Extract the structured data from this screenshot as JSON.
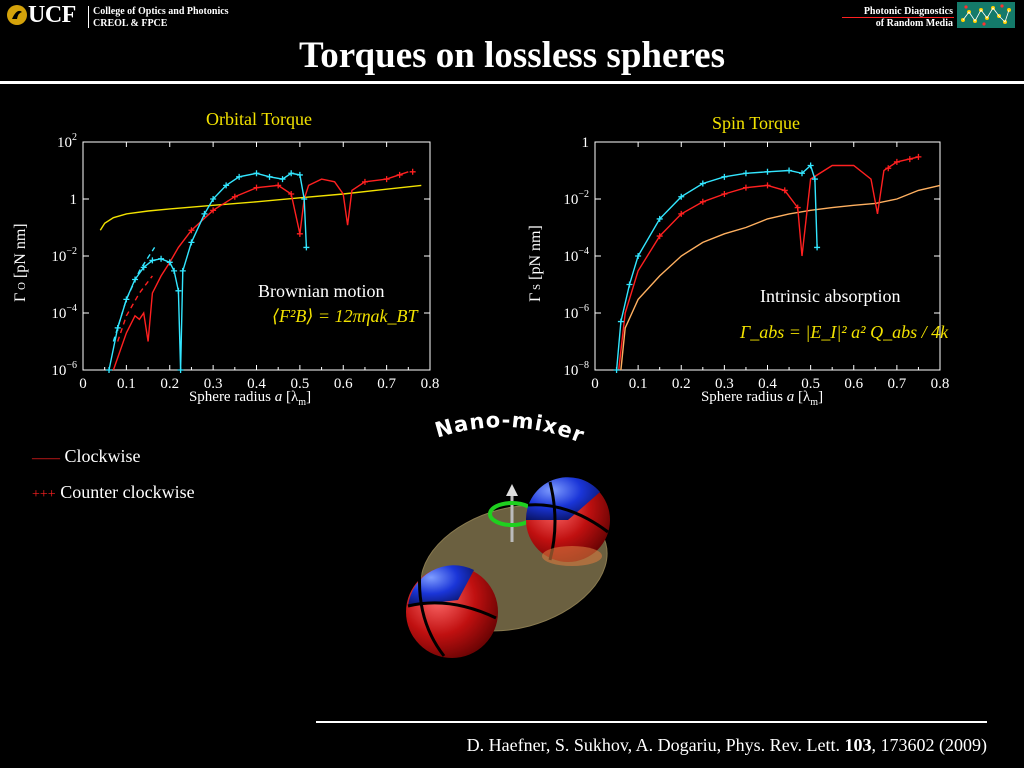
{
  "header": {
    "logo_text": "UCF",
    "college_line1": "College of Optics and Photonics",
    "college_line2": "CREOL & FPCE",
    "group_line1": "Photonic  Diagnostics",
    "group_line2": "of Random Media"
  },
  "slide": {
    "title": "Torques on lossless spheres"
  },
  "orbital_plot": {
    "title": "Orbital Torque",
    "ylabel_main": "Γ",
    "ylabel_sub": "O",
    "ylabel_units": "[pN nm]",
    "xlabel_pre": "Sphere radius ",
    "xlabel_var": "a",
    "xlabel_bracket_open": " [λ",
    "xlabel_sub": "m",
    "xlabel_bracket_close": "]",
    "annotation": "Brownian motion",
    "formula": "⟨F²B⟩ = 12πηak_BT"
  },
  "spin_plot": {
    "title": "Spin Torque",
    "ylabel_main": "Γ",
    "ylabel_sub": "S",
    "ylabel_units": "[pN nm]",
    "xlabel_pre": "Sphere radius ",
    "xlabel_var": "a",
    "xlabel_bracket_open": " [λ",
    "xlabel_sub": "m",
    "xlabel_bracket_close": "]",
    "annotation": "Intrinsic absorption",
    "formula": "Γ_abs = |E_I|² a² Q_abs / 4k"
  },
  "legend": {
    "items": [
      {
        "symbol": "——",
        "label": "Clockwise",
        "color": "#ff2020"
      },
      {
        "symbol": "+++",
        "label": "Counter clockwise",
        "color": "#ff2020"
      }
    ]
  },
  "mixer": {
    "label": "Nano-mixer"
  },
  "reference": {
    "prefix": "D. Haefner, S. Sukhov, A. Dogariu, Phys. Rev. Lett. ",
    "volume": "103",
    "suffix": ", 173602 (2009)"
  },
  "colors": {
    "accent_yellow": "#f2e200",
    "cyan": "#33e6ff",
    "red": "#ff2020",
    "orange": "#ffb060",
    "ucf_gold": "#d4a20a"
  },
  "chart_data": [
    {
      "type": "line",
      "title": "Orbital Torque",
      "xlabel": "Sphere radius a [λm]",
      "ylabel": "Γ O [pN nm]",
      "xlim": [
        0,
        0.8
      ],
      "ylim": [
        1e-06,
        100
      ],
      "yscale": "log",
      "x_ticks": [
        "0",
        "0.1",
        "0.2",
        "0.3",
        "0.4",
        "0.5",
        "0.6",
        "0.7",
        "0.8"
      ],
      "y_ticks": [
        "10^-6",
        "10^-4",
        "10^-2",
        "1",
        "10^2"
      ],
      "series": [
        {
          "name": "Brownian motion",
          "color": "#f2e200",
          "style": "line",
          "x": [
            0.04,
            0.05,
            0.07,
            0.1,
            0.15,
            0.2,
            0.3,
            0.4,
            0.5,
            0.6,
            0.7,
            0.78
          ],
          "y": [
            0.08,
            0.14,
            0.22,
            0.3,
            0.38,
            0.45,
            0.6,
            0.8,
            1.1,
            1.5,
            2.2,
            3.0
          ]
        },
        {
          "name": "Clockwise",
          "color": "#ff2020",
          "style": "line",
          "x": [
            0.07,
            0.1,
            0.12,
            0.13,
            0.14,
            0.15,
            0.16,
            0.18,
            0.2,
            0.22,
            0.25,
            0.3,
            0.35,
            0.4,
            0.45,
            0.48,
            0.5,
            0.51,
            0.52,
            0.55,
            0.58,
            0.6,
            0.61,
            0.62,
            0.65,
            0.7,
            0.75
          ],
          "y": [
            1e-06,
            2e-05,
            8e-05,
            6e-05,
            0.0001,
            1e-05,
            0.0005,
            0.002,
            0.006,
            0.02,
            0.08,
            0.4,
            1.2,
            2.5,
            3.0,
            1.5,
            0.06,
            1.0,
            3.0,
            5.0,
            4.0,
            1.5,
            0.12,
            2.0,
            4.0,
            5.0,
            9.0
          ]
        },
        {
          "name": "Counter clockwise",
          "color": "#ff2020",
          "style": "plus",
          "x": [
            0.25,
            0.3,
            0.35,
            0.4,
            0.45,
            0.48,
            0.5,
            0.65,
            0.7,
            0.73,
            0.76
          ],
          "y": [
            0.08,
            0.4,
            1.2,
            2.5,
            3.0,
            1.5,
            0.06,
            4.0,
            5.0,
            7.0,
            9.0
          ]
        },
        {
          "name": "cyan",
          "color": "#33e6ff",
          "style": "line-plus",
          "x": [
            0.06,
            0.08,
            0.1,
            0.12,
            0.14,
            0.16,
            0.18,
            0.2,
            0.21,
            0.22,
            0.225,
            0.23,
            0.25,
            0.28,
            0.3,
            0.33,
            0.36,
            0.4,
            0.43,
            0.46,
            0.48,
            0.5,
            0.51,
            0.515
          ],
          "y": [
            1e-06,
            3e-05,
            0.0003,
            0.0015,
            0.004,
            0.007,
            0.008,
            0.006,
            0.003,
            0.0006,
            1e-06,
            0.003,
            0.03,
            0.3,
            1.0,
            3.0,
            6.0,
            8.0,
            6.0,
            5.0,
            8.0,
            7.0,
            1.0,
            0.02
          ]
        },
        {
          "name": "fit-cyan",
          "color": "#33e6ff",
          "style": "dash",
          "x": [
            0.07,
            0.1,
            0.13,
            0.165
          ],
          "y": [
            1e-05,
            0.0003,
            0.003,
            0.02
          ]
        },
        {
          "name": "fit-red",
          "color": "#ff2020",
          "style": "dash",
          "x": [
            0.08,
            0.1,
            0.13,
            0.16
          ],
          "y": [
            1e-05,
            8e-05,
            0.0005,
            0.002
          ]
        }
      ]
    },
    {
      "type": "line",
      "title": "Spin Torque",
      "xlabel": "Sphere radius a [λm]",
      "ylabel": "Γ S [pN nm]",
      "xlim": [
        0,
        0.8
      ],
      "ylim": [
        1e-08,
        1
      ],
      "yscale": "log",
      "x_ticks": [
        "0",
        "0.1",
        "0.2",
        "0.3",
        "0.4",
        "0.5",
        "0.6",
        "0.7",
        "0.8"
      ],
      "y_ticks": [
        "10^-8",
        "10^-6",
        "10^-4",
        "10^-2",
        "1"
      ],
      "series": [
        {
          "name": "Intrinsic absorption",
          "color": "#ffb060",
          "style": "line",
          "x": [
            0.06,
            0.07,
            0.1,
            0.15,
            0.2,
            0.25,
            0.3,
            0.35,
            0.4,
            0.45,
            0.5,
            0.55,
            0.6,
            0.65,
            0.7,
            0.75,
            0.8
          ],
          "y": [
            1e-08,
            3e-07,
            3e-06,
            2e-05,
            0.0001,
            0.0003,
            0.0006,
            0.001,
            0.002,
            0.003,
            0.004,
            0.005,
            0.006,
            0.007,
            0.01,
            0.02,
            0.03
          ]
        },
        {
          "name": "Clockwise",
          "color": "#ff2020",
          "style": "line",
          "x": [
            0.055,
            0.07,
            0.1,
            0.15,
            0.2,
            0.25,
            0.3,
            0.35,
            0.4,
            0.44,
            0.47,
            0.48,
            0.5,
            0.55,
            0.6,
            0.64,
            0.655,
            0.67,
            0.7,
            0.75
          ],
          "y": [
            1e-08,
            1e-06,
            3e-05,
            0.0005,
            0.003,
            0.008,
            0.015,
            0.025,
            0.03,
            0.02,
            0.005,
            0.0001,
            0.05,
            0.15,
            0.15,
            0.05,
            0.003,
            0.1,
            0.2,
            0.3
          ]
        },
        {
          "name": "Counter clockwise",
          "color": "#ff2020",
          "style": "plus",
          "x": [
            0.15,
            0.2,
            0.25,
            0.3,
            0.35,
            0.4,
            0.44,
            0.47,
            0.68,
            0.7,
            0.73,
            0.75
          ],
          "y": [
            0.0005,
            0.003,
            0.008,
            0.015,
            0.025,
            0.03,
            0.02,
            0.005,
            0.12,
            0.2,
            0.25,
            0.3
          ]
        },
        {
          "name": "cyan",
          "color": "#33e6ff",
          "style": "line-plus",
          "x": [
            0.05,
            0.06,
            0.08,
            0.1,
            0.15,
            0.2,
            0.25,
            0.3,
            0.35,
            0.4,
            0.45,
            0.48,
            0.5,
            0.51,
            0.515
          ],
          "y": [
            1e-08,
            5e-07,
            1e-05,
            0.0001,
            0.002,
            0.012,
            0.035,
            0.06,
            0.08,
            0.09,
            0.1,
            0.08,
            0.15,
            0.05,
            0.0002
          ]
        }
      ]
    }
  ]
}
